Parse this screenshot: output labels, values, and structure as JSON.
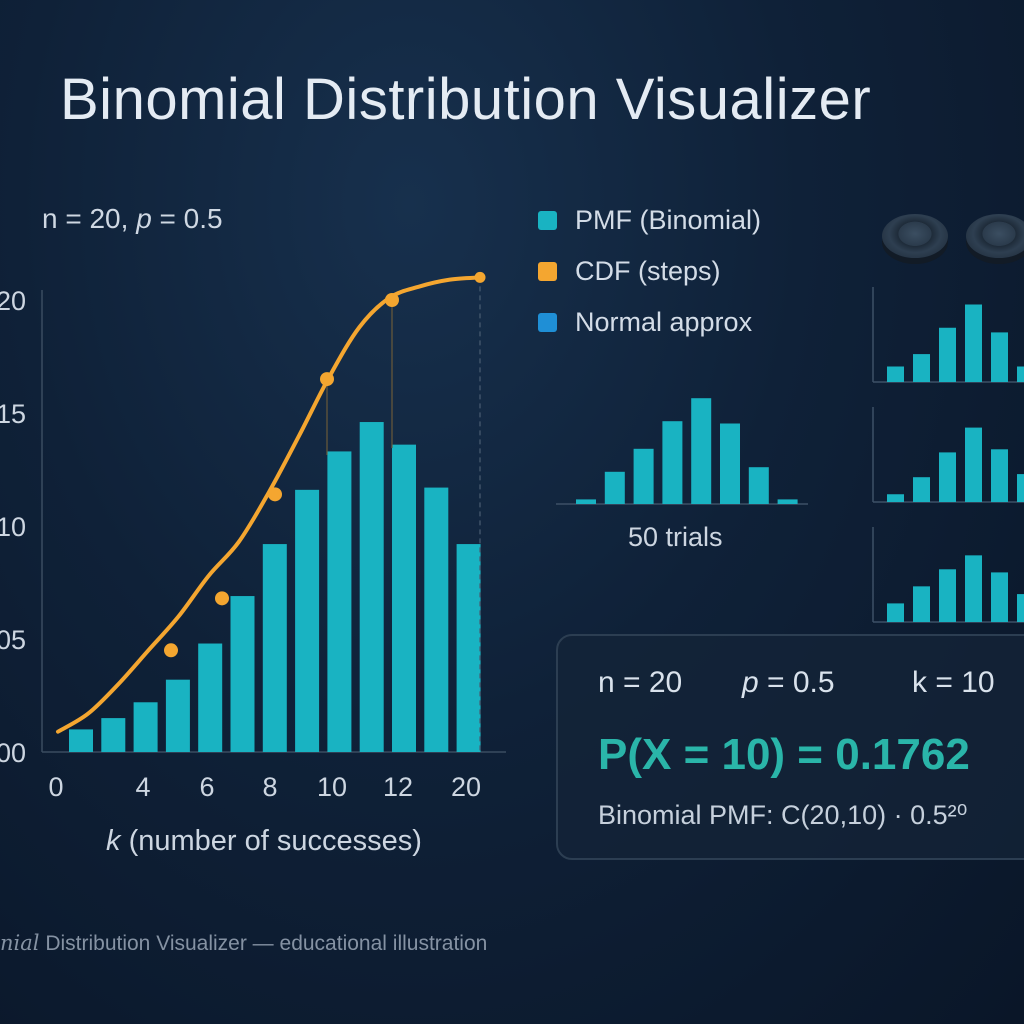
{
  "title": "Binomial Distribution Visualizer",
  "params_text": {
    "n_part": "n = 20, ",
    "p_symbol": "p",
    "p_part": " = 0.5"
  },
  "legend": [
    {
      "label": "PMF (Binomial)",
      "color": "#19b3c2"
    },
    {
      "label": "CDF (steps)",
      "color": "#f4a630"
    },
    {
      "label": "Normal approx",
      "color": "#1f8fd6"
    }
  ],
  "chart_data": [
    {
      "type": "bar",
      "xlabel_var": "k",
      "xlabel_rest": " (number of successes)",
      "y_tick_labels": [
        "00",
        "05",
        "10",
        "15",
        "20"
      ],
      "x_tick_labels": [
        "0",
        "4",
        "6",
        "8",
        "10",
        "12",
        "20"
      ],
      "ylim": [
        0,
        20
      ],
      "bar_values": [
        1.0,
        1.5,
        2.2,
        3.2,
        4.8,
        6.9,
        9.2,
        11.6,
        13.3,
        14.6,
        13.6,
        11.7,
        9.2
      ],
      "bar_color": "#19b3c2",
      "cdf_curve": [
        0.9,
        1.7,
        3.0,
        4.5,
        6.0,
        7.8,
        9.3,
        11.5,
        14.0,
        16.6,
        18.8,
        20.1,
        20.6,
        20.9,
        21.0
      ],
      "cdf_markers": [
        4.5,
        6.8,
        11.4,
        16.5,
        20.0,
        21.0
      ],
      "cdf_color": "#f4a630"
    },
    {
      "type": "bar",
      "label": "50 trials",
      "values": [
        0.2,
        1.4,
        2.4,
        3.6,
        4.6,
        3.5,
        1.6,
        0.2
      ],
      "color": "#19b3c2"
    },
    {
      "type": "bar",
      "values": [
        1.0,
        1.8,
        3.5,
        5.0,
        3.2,
        1.0
      ]
    },
    {
      "type": "bar",
      "values": [
        0.5,
        1.6,
        3.2,
        4.8,
        3.4,
        1.8
      ]
    },
    {
      "type": "bar",
      "values": [
        1.2,
        2.3,
        3.4,
        4.3,
        3.2,
        1.8
      ]
    }
  ],
  "info": {
    "n": "n = 20",
    "p_symbol": "p",
    "p_value": " = 0.5",
    "k": "k = 10",
    "probability": "P(X = 10) = 0.1762",
    "formula": "Binomial PMF: C(20,10) · 0.5²⁰"
  },
  "caption": {
    "italic": "nial",
    "rest": " Distribution Visualizer — educational illustration"
  }
}
